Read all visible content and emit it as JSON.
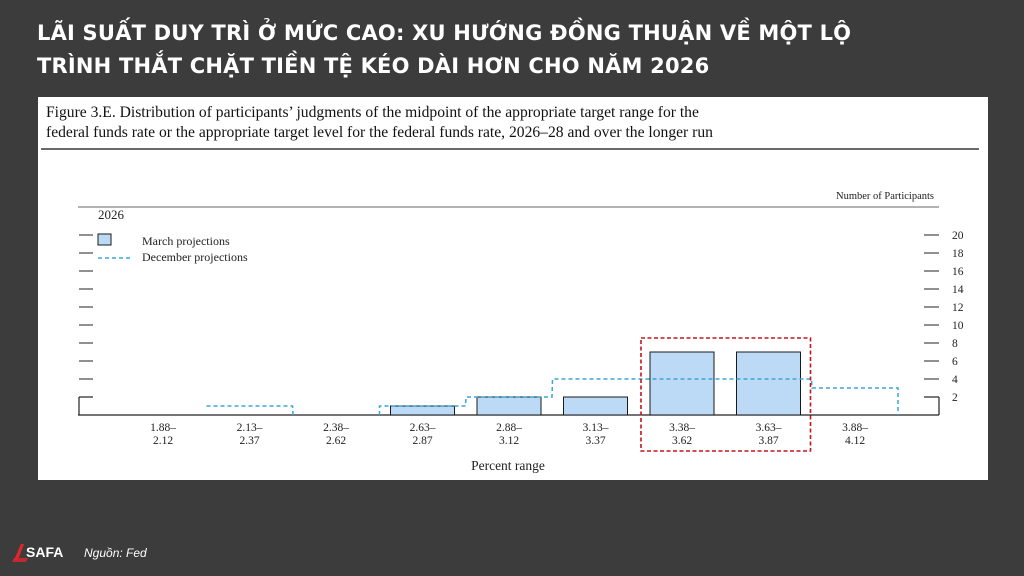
{
  "headline": {
    "line1": "LÃI SUẤT DUY TRÌ Ở MỨC CAO: XU HƯỚNG ĐỒNG THUẬN VỀ MỘT LỘ",
    "line2": "TRÌNH THẮT CHẶT TIỀN TỆ KÉO DÀI HƠN CHO NĂM 2026"
  },
  "figure": {
    "caption_line1": "Figure 3.E. Distribution of participants’ judgments of the midpoint of the appropriate target range for the",
    "caption_line2": "federal funds rate or the appropriate target level for the federal funds rate, 2026–28 and over the longer run"
  },
  "chart_data": {
    "type": "bar",
    "panel_label": "2026",
    "ylabel": "Number of Participants",
    "xlabel": "Percent range",
    "ylim": [
      0,
      20
    ],
    "yticks": [
      2,
      4,
      6,
      8,
      10,
      12,
      14,
      16,
      18,
      20
    ],
    "categories": [
      {
        "top": "1.88–",
        "bottom": "2.12"
      },
      {
        "top": "2.13–",
        "bottom": "2.37"
      },
      {
        "top": "2.38–",
        "bottom": "2.62"
      },
      {
        "top": "2.63–",
        "bottom": "2.87"
      },
      {
        "top": "2.88–",
        "bottom": "3.12"
      },
      {
        "top": "3.13–",
        "bottom": "3.37"
      },
      {
        "top": "3.38–",
        "bottom": "3.62"
      },
      {
        "top": "3.63–",
        "bottom": "3.87"
      },
      {
        "top": "3.88–",
        "bottom": "4.12"
      }
    ],
    "series": [
      {
        "name": "March projections",
        "style": "bar",
        "color": "#bcd9f5",
        "values": [
          0,
          0,
          0,
          1,
          2,
          2,
          7,
          7,
          0
        ]
      },
      {
        "name": "December projections",
        "style": "dashed-step",
        "color": "#3aa6d8",
        "values": [
          0,
          1,
          0,
          1,
          2,
          4,
          4,
          4,
          3
        ]
      }
    ],
    "highlight": {
      "categories": [
        6,
        7
      ],
      "color": "#c0171d"
    }
  },
  "footer": {
    "logo_text": "SAFA",
    "source": "Nguồn: Fed"
  }
}
